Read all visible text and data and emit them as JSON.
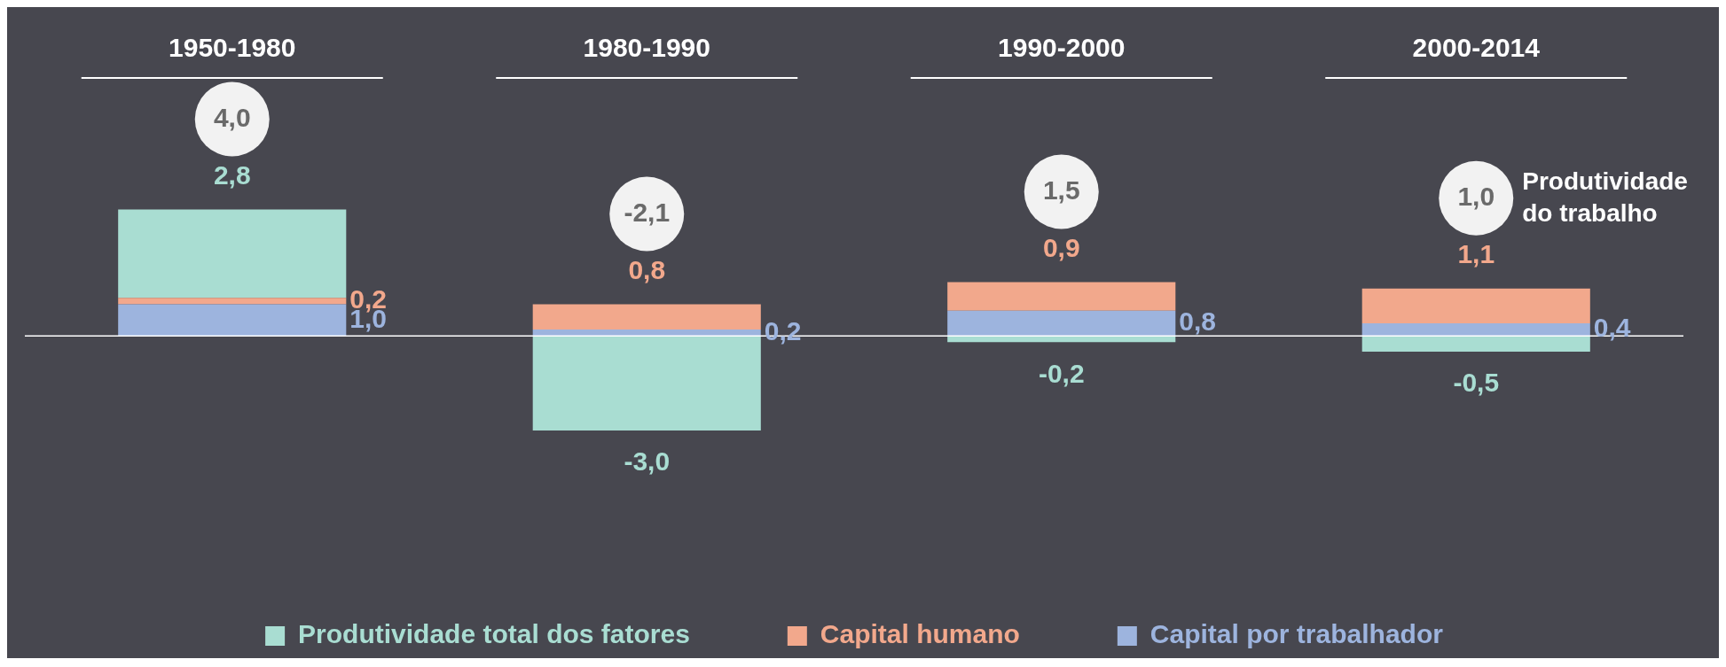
{
  "chart_data": {
    "type": "bar",
    "stacked": true,
    "categories": [
      "1950-1980",
      "1980-1990",
      "1990-2000",
      "2000-2014"
    ],
    "series": [
      {
        "name": "Capital por trabalhador",
        "color": "#9db4de",
        "values": [
          1.0,
          0.2,
          0.8,
          0.4
        ],
        "value_labels": [
          "1,0",
          "0,2",
          "0,8",
          "0,4"
        ]
      },
      {
        "name": "Capital humano",
        "color": "#f2a88c",
        "values": [
          0.2,
          0.8,
          0.9,
          1.1
        ],
        "value_labels": [
          "0,2",
          "0,8",
          "0,9",
          "1,1"
        ]
      },
      {
        "name": "Produtividade total dos fatores",
        "color": "#a9ddd2",
        "values": [
          2.8,
          -3.0,
          -0.2,
          -0.5
        ],
        "value_labels": [
          "2,8",
          "-3,0",
          "-0,2",
          "-0,5"
        ]
      }
    ],
    "totals": [
      "4,0",
      "-2,1",
      "1,5",
      "1,0"
    ],
    "annotations": [
      "Produtividade do trabalho"
    ],
    "ref_lines": [
      {
        "axis": "y",
        "value": 0,
        "color": "#ffffff"
      }
    ],
    "legend": "bottom",
    "grid": false
  }
}
